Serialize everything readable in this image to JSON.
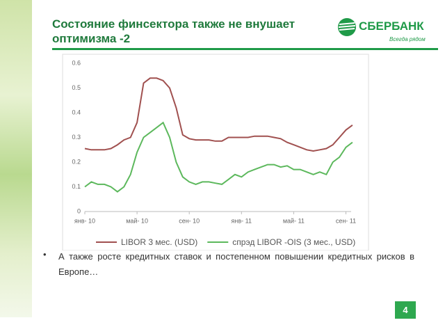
{
  "slide": {
    "title": "Состояние финсектора также не внушает оптимизма -2"
  },
  "logo": {
    "name": "СБЕРБАНК",
    "slogan": "Всегда рядом"
  },
  "bullets": [
    "А также росте кредитных ставок и постепенном повышении кредитных рисков в Европе…"
  ],
  "page_number": "4",
  "chart_data": {
    "type": "line",
    "x": [
      0,
      0.5,
      1,
      1.5,
      2,
      2.5,
      3,
      3.5,
      4,
      4.5,
      5,
      5.5,
      6,
      6.5,
      7,
      7.5,
      8,
      8.5,
      9,
      9.5,
      10,
      10.5,
      11,
      11.5,
      12,
      12.5,
      13,
      13.5,
      14,
      14.5,
      15,
      15.5,
      16,
      16.5,
      17,
      17.5,
      18,
      18.5,
      19,
      19.5,
      20,
      20.5
    ],
    "series": [
      {
        "name": "LIBOR 3 мес. (USD)",
        "color": "#a0504f",
        "values": [
          0.255,
          0.25,
          0.25,
          0.25,
          0.255,
          0.27,
          0.29,
          0.3,
          0.36,
          0.52,
          0.54,
          0.54,
          0.53,
          0.5,
          0.42,
          0.31,
          0.295,
          0.29,
          0.29,
          0.29,
          0.285,
          0.285,
          0.3,
          0.3,
          0.3,
          0.3,
          0.305,
          0.305,
          0.305,
          0.3,
          0.295,
          0.28,
          0.27,
          0.26,
          0.25,
          0.245,
          0.25,
          0.255,
          0.27,
          0.3,
          0.33,
          0.35
        ]
      },
      {
        "name": "спрэд LIBOR -OIS (3 мес., USD)",
        "color": "#5cb85c",
        "values": [
          0.1,
          0.12,
          0.11,
          0.11,
          0.1,
          0.08,
          0.1,
          0.15,
          0.24,
          0.3,
          0.32,
          0.34,
          0.36,
          0.3,
          0.2,
          0.14,
          0.12,
          0.11,
          0.12,
          0.12,
          0.115,
          0.11,
          0.13,
          0.15,
          0.14,
          0.16,
          0.17,
          0.18,
          0.19,
          0.19,
          0.18,
          0.185,
          0.17,
          0.17,
          0.16,
          0.15,
          0.16,
          0.15,
          0.2,
          0.22,
          0.26,
          0.28
        ]
      }
    ],
    "xlim": [
      0,
      20.4
    ],
    "xticks": [
      {
        "value": 0,
        "label": "янв- 10"
      },
      {
        "value": 4,
        "label": "май- 10"
      },
      {
        "value": 8,
        "label": "сен- 10"
      },
      {
        "value": 12,
        "label": "янв- 11"
      },
      {
        "value": 16,
        "label": "май- 11"
      },
      {
        "value": 20,
        "label": "сен- 11"
      }
    ],
    "ylim": [
      0,
      0.6
    ],
    "yticks": [
      0,
      0.1,
      0.2,
      0.3,
      0.4,
      0.5,
      0.6
    ],
    "grid": false,
    "legend": "bottom"
  }
}
